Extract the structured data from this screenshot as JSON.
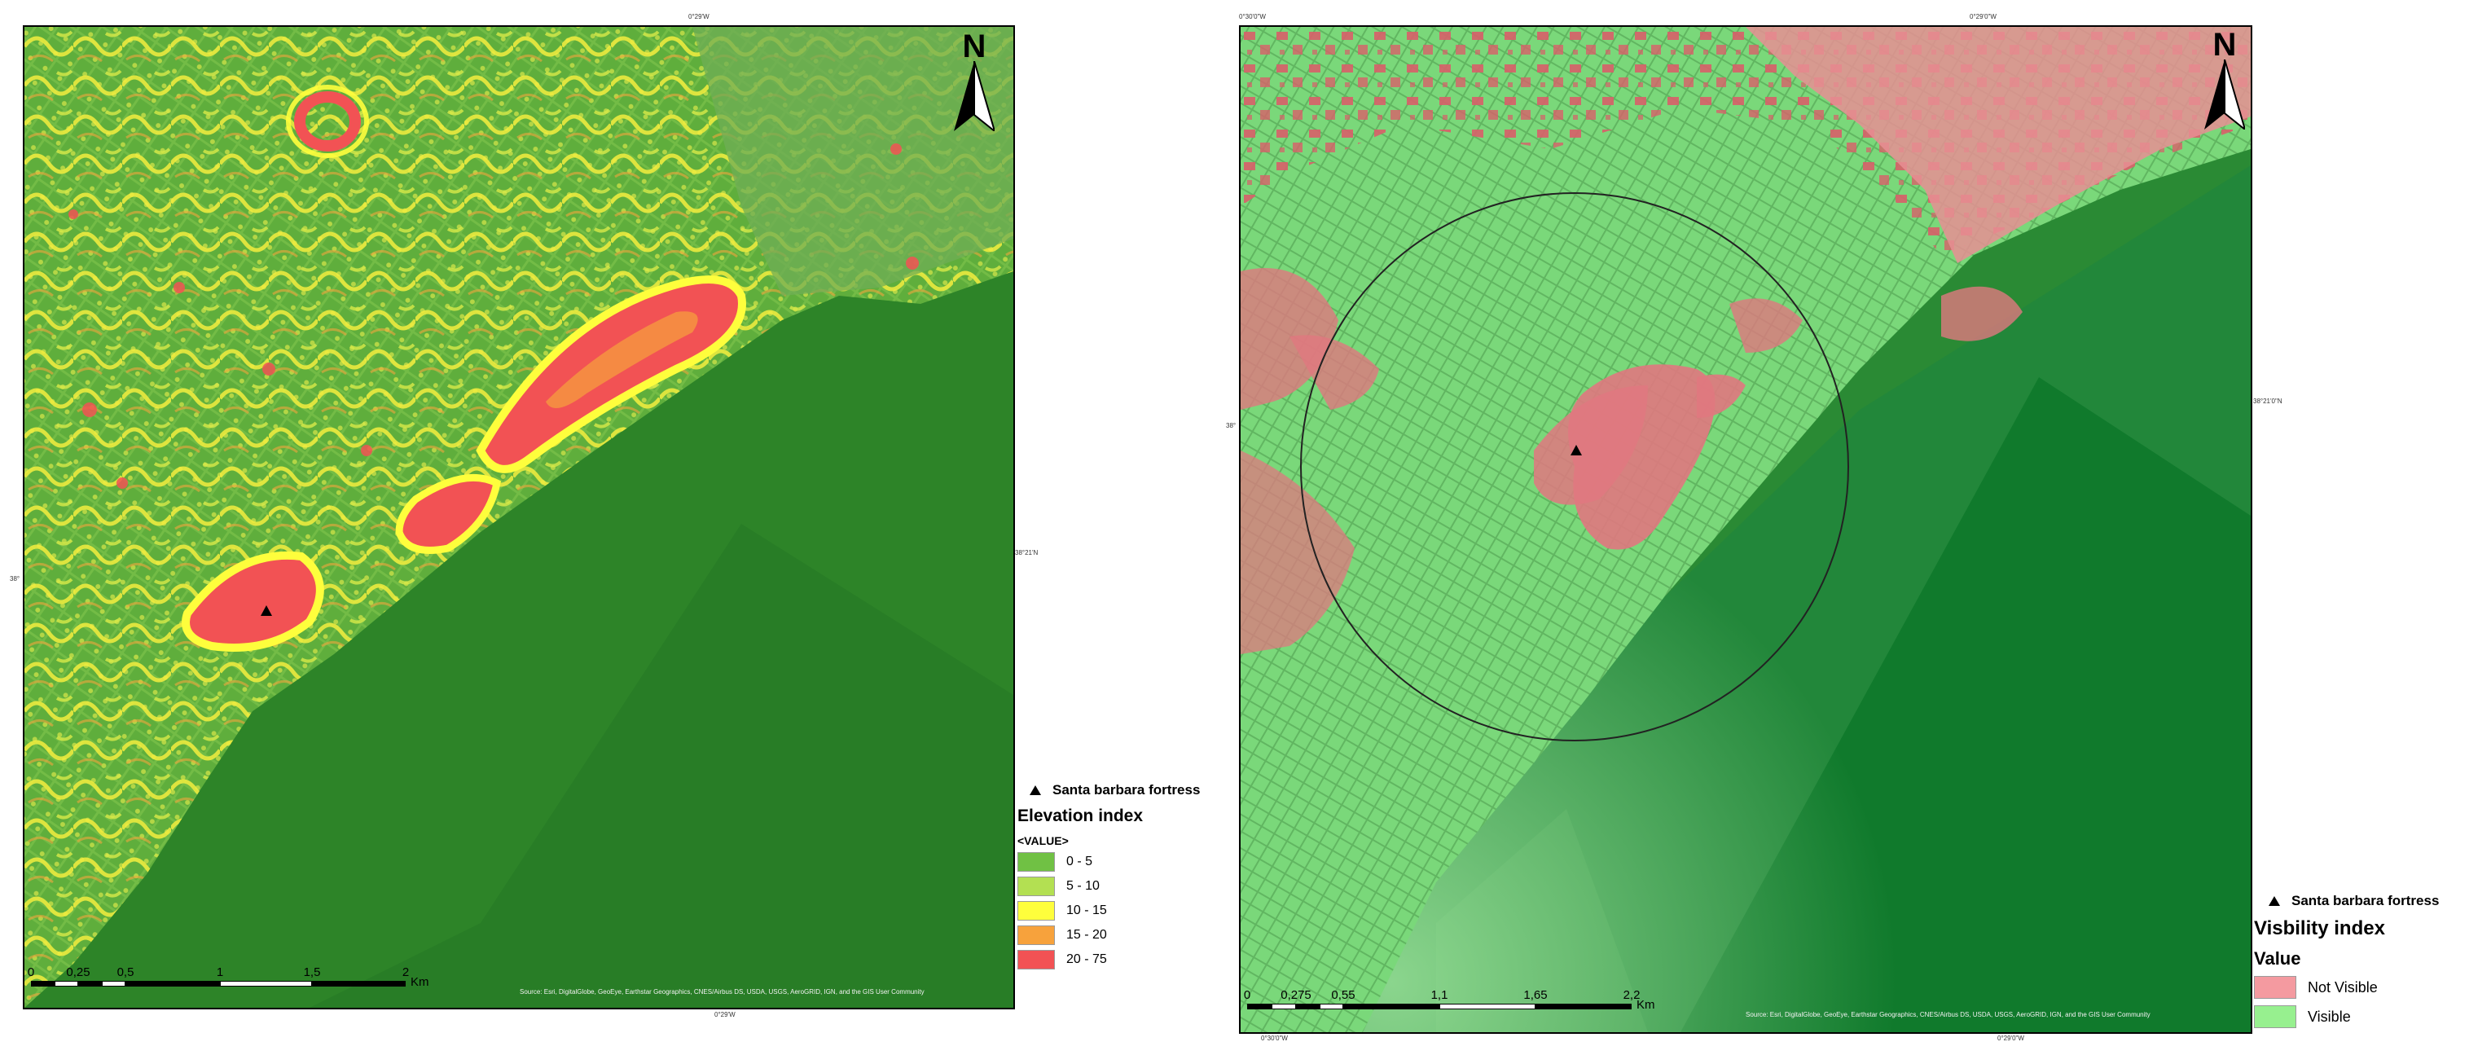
{
  "colors": {
    "elev_0_5": "#70c144",
    "elev_5_10": "#b3e052",
    "elev_10_15": "#fefe3c",
    "elev_15_20": "#f7a23c",
    "elev_20_75": "#f25254",
    "not_visible": "#f49aa0",
    "visible": "#97f08f",
    "sea_green": "#2f8a2a"
  },
  "left_map": {
    "coords": {
      "top": "0°29'W",
      "bottom": "0°29'W",
      "left": "38°",
      "right": "38°21'N"
    },
    "north_label": "N",
    "scale": {
      "ticks": [
        "0",
        "0,25",
        "0,5",
        "1",
        "1,5",
        "2"
      ],
      "unit": "Km"
    },
    "credits": "Source: Esri, DigitalGlobe, GeoEye, Earthstar Geographics, CNES/Airbus DS, USDA, USGS, AeroGRID, IGN, and the GIS User Community",
    "legend": {
      "marker_label": "Santa barbara fortress",
      "title": "Elevation index",
      "subtitle": "<VALUE>",
      "items": [
        {
          "label": "0 - 5",
          "color": "#70c144"
        },
        {
          "label": "5 - 10",
          "color": "#b3e052"
        },
        {
          "label": "10 - 15",
          "color": "#fefe3c"
        },
        {
          "label": "15 - 20",
          "color": "#f7a23c"
        },
        {
          "label": "20 - 75",
          "color": "#f25254"
        }
      ]
    }
  },
  "right_map": {
    "coords": {
      "top_left": "0°30'0\"W",
      "top_right": "0°29'0\"W",
      "bottom_left": "0°30'0\"W",
      "bottom_right": "0°29'0\"W",
      "left": "38°",
      "right": "38°21'0\"N"
    },
    "north_label": "N",
    "scale": {
      "ticks": [
        "0",
        "0,275",
        "0,55",
        "1,1",
        "1,65",
        "2,2"
      ],
      "unit": "Km"
    },
    "credits": "Source: Esri, DigitalGlobe, GeoEye, Earthstar Geographics, CNES/Airbus DS, USDA, USGS, AeroGRID, IGN, and the GIS User Community",
    "legend": {
      "marker_label": "Santa barbara fortress",
      "title": "Visbility index",
      "subtitle": "Value",
      "items": [
        {
          "label": "Not Visible",
          "color": "#f49aa0"
        },
        {
          "label": "Visible",
          "color": "#97f08f"
        }
      ]
    }
  }
}
